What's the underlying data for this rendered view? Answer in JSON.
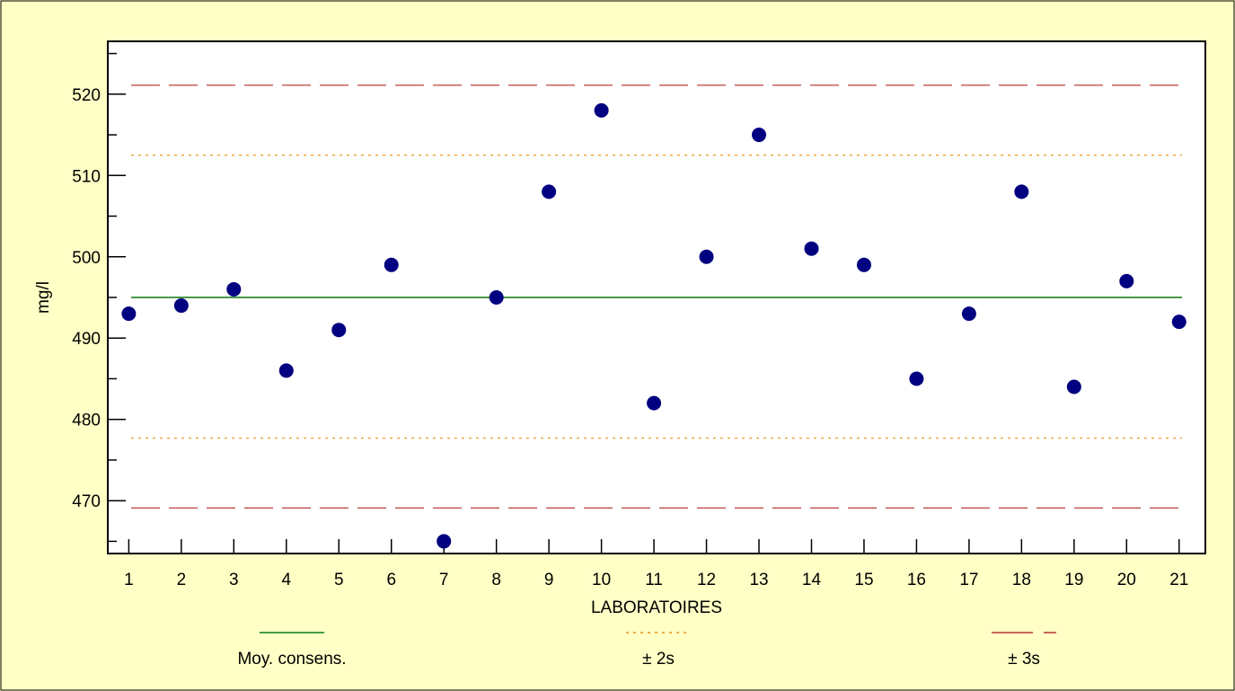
{
  "chart_data": {
    "type": "scatter",
    "title": "",
    "xlabel": "LABORATOIRES",
    "ylabel": "mg/l",
    "x": [
      1,
      2,
      3,
      4,
      5,
      6,
      7,
      8,
      9,
      10,
      11,
      12,
      13,
      14,
      15,
      16,
      17,
      18,
      19,
      20,
      21
    ],
    "series": [
      {
        "values": [
          493,
          494,
          496,
          486,
          491,
          499,
          465,
          495,
          508,
          518,
          482,
          500,
          515,
          501,
          499,
          485,
          493,
          508,
          484,
          497,
          492
        ]
      }
    ],
    "xlim": [
      0.6,
      21.5
    ],
    "ylim": [
      463.5,
      526.5
    ],
    "yticks": [
      470,
      480,
      490,
      500,
      510,
      520
    ],
    "xticks": [
      1,
      2,
      3,
      4,
      5,
      6,
      7,
      8,
      9,
      10,
      11,
      12,
      13,
      14,
      15,
      16,
      17,
      18,
      19,
      20,
      21
    ],
    "reference_lines": [
      {
        "name": "Moy. consens.",
        "value": 495,
        "style": "solid",
        "color": "#2E8B2E"
      },
      {
        "name": "± 2s",
        "values": [
          477.7,
          512.5
        ],
        "style": "dotted",
        "color": "#F0A030"
      },
      {
        "name": "± 3s",
        "values": [
          469.1,
          521.1
        ],
        "style": "dashed",
        "color": "#C0504D"
      }
    ],
    "point_color": "#000080",
    "background": "#FFFFC6",
    "grid": false,
    "legend_position": "bottom"
  }
}
